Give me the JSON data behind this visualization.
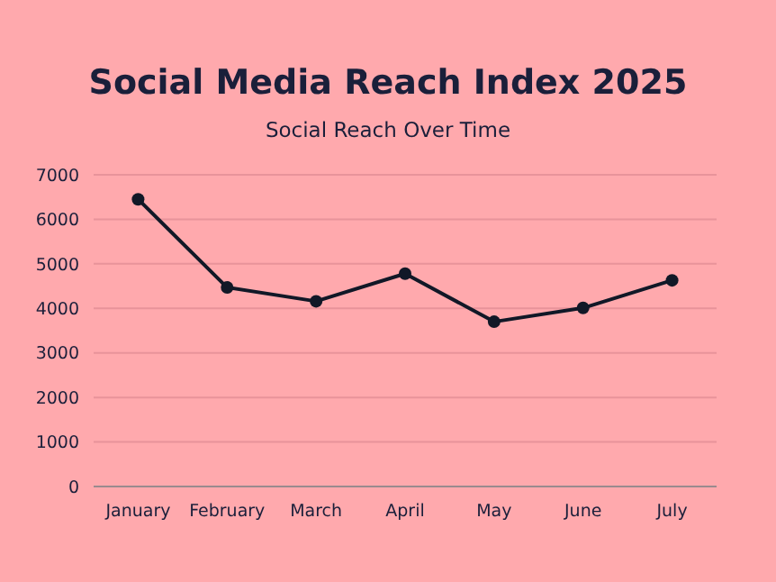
{
  "chart_data": {
    "type": "line",
    "title": "Social Media Reach Index 2025",
    "subtitle": "Social Reach Over Time",
    "categories": [
      "January",
      "February",
      "March",
      "April",
      "May",
      "June",
      "July"
    ],
    "series": [
      {
        "color": "#111827",
        "values": [
          6450,
          4470,
          4160,
          4780,
          3700,
          4010,
          4630
        ]
      }
    ],
    "ylim": [
      0,
      7000
    ],
    "yticks": [
      0,
      1000,
      2000,
      3000,
      4000,
      5000,
      6000,
      7000
    ],
    "grid": "y",
    "marker": "circle",
    "line_style": "solid"
  }
}
